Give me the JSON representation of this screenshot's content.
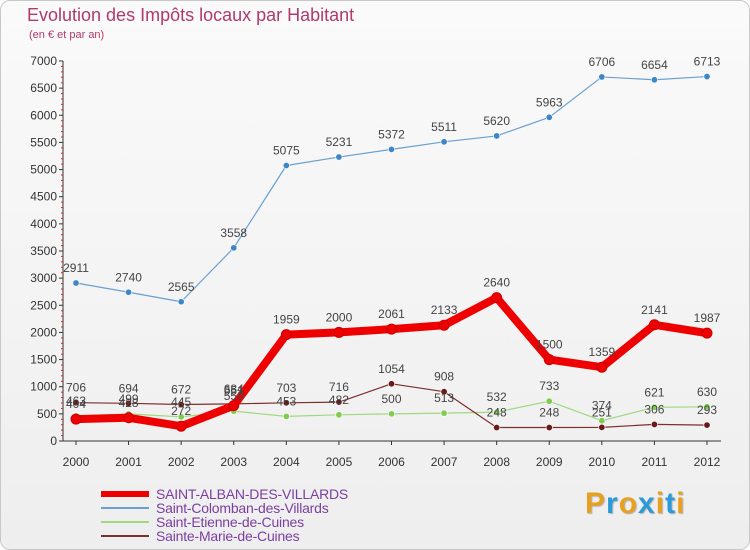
{
  "title": "Evolution des Impôts locaux par Habitant",
  "subtitle": "(en € et par an)",
  "logo": {
    "text": "Proxiti",
    "colors": [
      "#e8a020",
      "#2a9ad8",
      "#e8a020",
      "#2a9ad8",
      "#e8a020",
      "#2a9ad8",
      "#e8a020"
    ]
  },
  "chart_data": {
    "type": "line",
    "title": "Evolution des Impôts locaux par Habitant",
    "subtitle": "(en € et par an)",
    "xlabel": "",
    "ylabel": "",
    "ylim": [
      0,
      7000
    ],
    "yticks": [
      0,
      500,
      1000,
      1500,
      2000,
      2500,
      3000,
      3500,
      4000,
      4500,
      5000,
      5500,
      6000,
      6500,
      7000
    ],
    "grid": false,
    "categories": [
      "2000",
      "2001",
      "2002",
      "2003",
      "2004",
      "2005",
      "2006",
      "2007",
      "2008",
      "2009",
      "2010",
      "2011",
      "2012"
    ],
    "series": [
      {
        "name": "SAINT-ALBAN-DES-VILLARDS",
        "color": "#ee0000",
        "marker": "#ee0000",
        "values": [
          404,
          428,
          272,
          651,
          1959,
          2000,
          2061,
          2133,
          2640,
          1500,
          1359,
          2141,
          1987
        ],
        "labels": [
          "404",
          "428",
          "272",
          "651",
          "1959",
          "2000",
          "2061",
          "2133",
          "2640",
          "1500",
          "1359",
          "2141",
          "1987"
        ]
      },
      {
        "name": "Saint-Colomban-des-Villards",
        "color": "#6a9fd0",
        "marker": "#3d86c8",
        "values": [
          2911,
          2740,
          2565,
          3558,
          5075,
          5231,
          5372,
          5511,
          5620,
          5963,
          6706,
          6654,
          6713
        ],
        "labels": [
          "2911",
          "2740",
          "2565",
          "3558",
          "5075",
          "5231",
          "5372",
          "5511",
          "5620",
          "5963",
          "6706",
          "6654",
          "6713"
        ]
      },
      {
        "name": "Saint-Etienne-de-Cuines",
        "color": "#a0d880",
        "marker": "#80cc50",
        "values": [
          463,
          499,
          445,
          550,
          453,
          482,
          500,
          513,
          532,
          733,
          374,
          621,
          630
        ],
        "labels": [
          "463",
          "499",
          "445",
          "550",
          "453",
          "482",
          "500",
          "513",
          "532",
          "733",
          "374",
          "621",
          "630"
        ]
      },
      {
        "name": "Sainte-Marie-de-Cuines",
        "color": "#7a3030",
        "marker": "#6a1818",
        "values": [
          706,
          694,
          672,
          684,
          703,
          716,
          1054,
          908,
          248,
          248,
          251,
          306,
          293
        ],
        "labels": [
          "706",
          "694",
          "672",
          "684",
          "703",
          "716",
          "1054",
          "908",
          "248",
          "248",
          "251",
          "306",
          "293"
        ]
      }
    ],
    "legend": "bottom"
  }
}
